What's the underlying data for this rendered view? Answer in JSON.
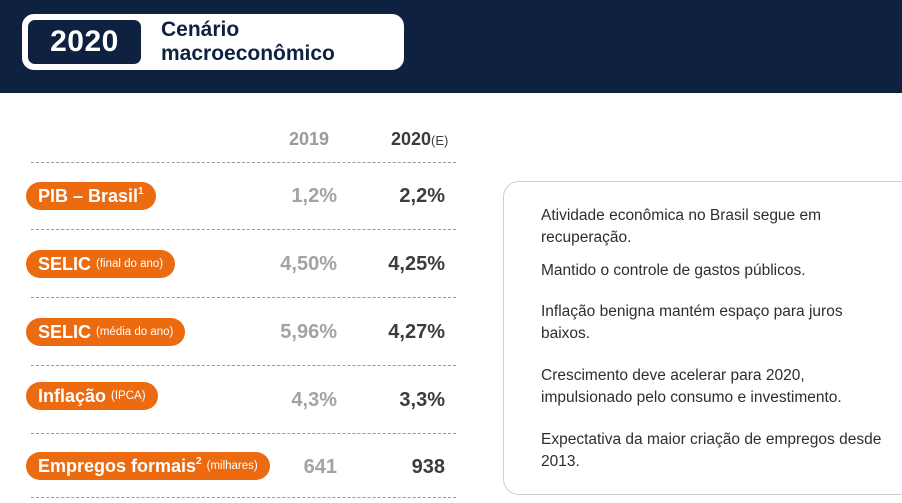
{
  "header": {
    "year": "2020",
    "title": "Cenário macroeconômico"
  },
  "table": {
    "col_2019": "2019",
    "col_2020": "2020",
    "col_2020_suffix": "(E)",
    "rows": [
      {
        "label": "PIB – Brasil",
        "sup": "1",
        "sub": "",
        "v2019": "1,2%",
        "v2020": "2,2%"
      },
      {
        "label": "SELIC",
        "sup": "",
        "sub": "(final do ano)",
        "v2019": "4,50%",
        "v2020": "4,25%"
      },
      {
        "label": "SELIC",
        "sup": "",
        "sub": "(média do ano)",
        "v2019": "5,96%",
        "v2020": "4,27%"
      },
      {
        "label": "Inflação",
        "sup": "",
        "sub": "(IPCA)",
        "v2019": "4,3%",
        "v2020": "3,3%"
      },
      {
        "label": "Empregos formais",
        "sup": "2",
        "sub": "(milhares)",
        "v2019": "641",
        "v2020": "938"
      }
    ]
  },
  "panel": {
    "items": [
      "Atividade econômica no Brasil segue em recuperação.",
      "Mantido o controle de gastos públicos.",
      "Inflação benigna mantém espaço para juros baixos.",
      "Crescimento deve acelerar para 2020, impulsionado pelo consumo e investimento.",
      "Expectativa da maior criação de empregos desde 2013."
    ]
  },
  "colors": {
    "navy": "#0f2141",
    "orange": "#ec6a10",
    "value_2019": "#a3a3a3",
    "value_2020": "#3c3c3c"
  }
}
